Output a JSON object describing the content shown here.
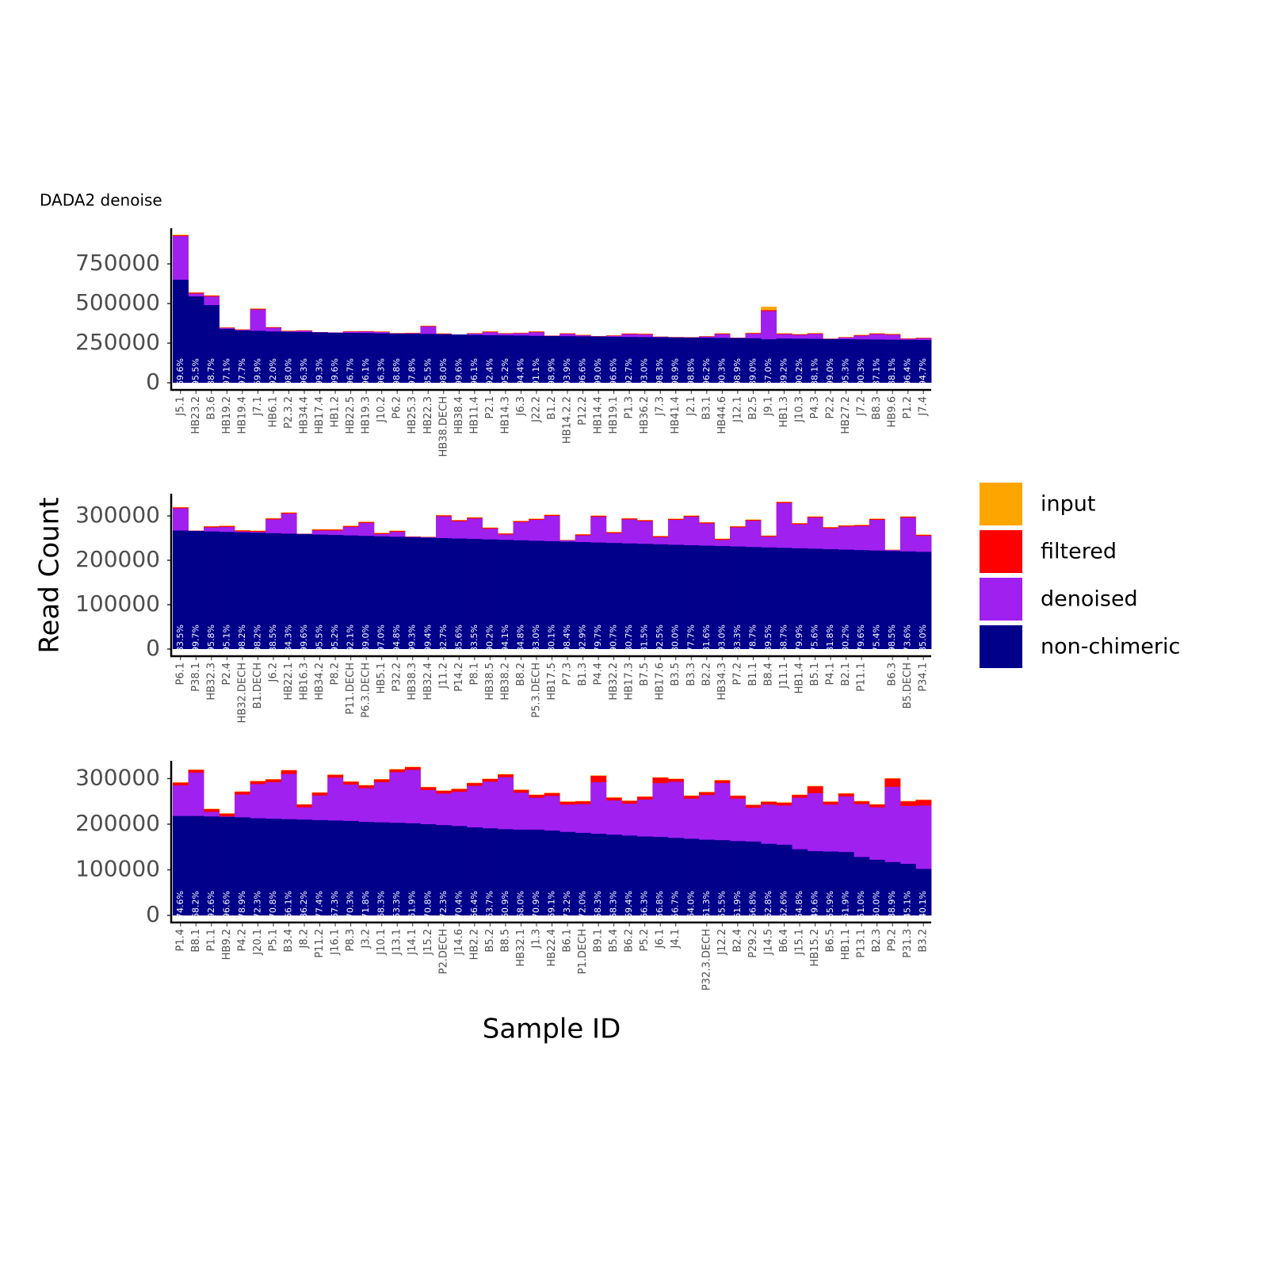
{
  "chart_data": [
    {
      "type": "bar",
      "title": "DADA2 denoise",
      "overlay": true,
      "legend": "right",
      "ylim": [
        -35000,
        975000
      ],
      "yticks": [
        0,
        250000,
        500000,
        750000
      ],
      "categories": [
        "J5.1",
        "HB23.2",
        "B3.6",
        "HB19.2",
        "HB19.4",
        "J7.1",
        "HB6.1",
        "P2.3.2",
        "HB34.4",
        "HB17.4",
        "HB1.2",
        "HB22.5",
        "HB19.3",
        "J10.2",
        "P6.2",
        "HB25.3",
        "HB22.3",
        "HB38.DECH",
        "HB38.4",
        "HB11.4",
        "P2.1",
        "HB14.3",
        "J6.3",
        "J22.2",
        "B1.2",
        "HB14.2.2",
        "P12.2",
        "HB14.4",
        "HB19.1",
        "P1.3",
        "HB36.2",
        "J7.3",
        "HB41.4",
        "J2.1",
        "B3.1",
        "HB44.6",
        "J12.1",
        "B2.5",
        "J9.1",
        "HB1.3",
        "J10.3",
        "P4.3",
        "P2.2",
        "HB27.2",
        "J7.2",
        "B8.3",
        "HB9.6",
        "P1.2",
        "J7.4"
      ],
      "bar_labels": [
        "69.6%",
        "95.5%",
        "88.7%",
        "97.1%",
        "97.7%",
        "69.9%",
        "92.0%",
        "98.0%",
        "96.3%",
        "99.3%",
        "99.6%",
        "96.7%",
        "96.1%",
        "96.3%",
        "98.8%",
        "97.8%",
        "85.5%",
        "98.0%",
        "99.6%",
        "96.1%",
        "92.4%",
        "95.2%",
        "94.4%",
        "91.1%",
        "98.9%",
        "93.9%",
        "96.6%",
        "99.0%",
        "96.6%",
        "92.7%",
        "93.0%",
        "98.3%",
        "98.9%",
        "98.8%",
        "96.2%",
        "90.3%",
        "98.9%",
        "89.0%",
        "57.0%",
        "89.2%",
        "90.2%",
        "88.1%",
        "99.0%",
        "95.3%",
        "90.3%",
        "87.1%",
        "88.1%",
        "96.4%",
        "94.7%"
      ],
      "series": [
        {
          "name": "input",
          "color": "#FFA500",
          "values": [
            935000,
            571000,
            552000,
            350000,
            338000,
            469000,
            352000,
            329000,
            332000,
            320000,
            317000,
            326000,
            327000,
            324000,
            314000,
            316000,
            360000,
            312000,
            305000,
            314000,
            325000,
            314000,
            316000,
            325000,
            298000,
            313000,
            303000,
            295000,
            300000,
            312000,
            310000,
            292000,
            289000,
            288000,
            295000,
            313000,
            285000,
            316000,
            480000,
            313000,
            308000,
            314000,
            279000,
            289000,
            303000,
            313000,
            309000,
            281000,
            285000
          ]
        },
        {
          "name": "filtered",
          "color": "#FF0000",
          "values": [
            930000,
            568000,
            549000,
            348000,
            336000,
            466000,
            350000,
            327000,
            330000,
            319500,
            316800,
            324000,
            325000,
            322000,
            313000,
            314000,
            358000,
            310000,
            304800,
            312000,
            322000,
            312000,
            314000,
            322000,
            297000,
            311000,
            301000,
            294000,
            298000,
            310000,
            308000,
            291000,
            288000,
            287000,
            293000,
            310000,
            284000,
            313000,
            458000,
            310000,
            305000,
            311000,
            278000,
            287000,
            300000,
            310000,
            306000,
            279000,
            283000
          ]
        },
        {
          "name": "denoised",
          "color": "#A020F0",
          "values": [
            925000,
            563000,
            544000,
            346000,
            334000,
            462000,
            347000,
            325000,
            328000,
            319000,
            316500,
            322000,
            323000,
            320000,
            312000,
            312000,
            355000,
            308000,
            304500,
            310000,
            319000,
            310000,
            312000,
            319000,
            296000,
            308000,
            299000,
            293000,
            296000,
            307000,
            305000,
            290000,
            287000,
            286000,
            291000,
            307000,
            283000,
            310000,
            452000,
            307000,
            302000,
            308000,
            277000,
            285000,
            297000,
            307000,
            303000,
            277000,
            281000
          ]
        },
        {
          "name": "non-chimeric",
          "color": "#00008B",
          "values": [
            650000,
            545000,
            490000,
            340000,
            330000,
            328000,
            324000,
            322000,
            320000,
            318000,
            316000,
            315000,
            314000,
            312000,
            310000,
            309000,
            308000,
            306000,
            304000,
            302000,
            300000,
            299000,
            298000,
            296000,
            295000,
            294000,
            293000,
            292000,
            290000,
            289000,
            288000,
            287000,
            286000,
            285000,
            284000,
            283000,
            282000,
            281000,
            274000,
            279000,
            278000,
            277000,
            276000,
            275000,
            274000,
            273000,
            272000,
            271000,
            270000
          ]
        }
      ]
    },
    {
      "type": "bar",
      "overlay": true,
      "ylabel": "Read Count",
      "ylim": [
        -12500,
        350000
      ],
      "yticks": [
        0,
        100000,
        200000,
        300000
      ],
      "categories": [
        "P6.1",
        "P38.1",
        "HB32.3",
        "P2.4",
        "HB32.DECH",
        "B1.DECH",
        "J6.2",
        "HB22.1",
        "HB16.3",
        "HB34.2",
        "P8.2",
        "P11.DECH",
        "P6.3.DECH",
        "HB5.1",
        "P32.2",
        "HB38.3",
        "HB32.4",
        "J11.2",
        "P14.2",
        "P8.1",
        "HB38.5",
        "HB38.2",
        "B8.2",
        "P5.3.DECH",
        "HB17.5",
        "P7.3",
        "B1.3",
        "P4.4",
        "HB32.2",
        "HB17.3",
        "B7.5",
        "HB17.6",
        "B3.5",
        "B3.3",
        "B2.2",
        "HB34.3",
        "P7.2",
        "B1.1",
        "B8.4",
        "J11.1",
        "HB1.4",
        "B5.1",
        "P4.1",
        "B2.1",
        "P11.1",
        null,
        "B6.3",
        "B5.DECH",
        "P34.1"
      ],
      "bar_labels": [
        "83.5%",
        "99.7%",
        "95.8%",
        "95.1%",
        "98.2%",
        "98.2%",
        "88.5%",
        "84.3%",
        "99.6%",
        "95.5%",
        "95.2%",
        "92.1%",
        "89.0%",
        "97.0%",
        "94.8%",
        "99.3%",
        "99.4%",
        "82.7%",
        "85.6%",
        "83.5%",
        "90.2%",
        "94.1%",
        "84.8%",
        "83.0%",
        "80.1%",
        "98.4%",
        "92.9%",
        "79.7%",
        "90.7%",
        "80.7%",
        "81.5%",
        "92.5%",
        "80.0%",
        "77.7%",
        "81.6%",
        "93.0%",
        "83.3%",
        "78.7%",
        "89.5%",
        "68.7%",
        "79.9%",
        "75.6%",
        "81.8%",
        "80.2%",
        "79.6%",
        "75.4%",
        "98.5%",
        "73.6%",
        "85.0%"
      ],
      "series": [
        {
          "name": "input",
          "color": "#FFA500",
          "values": [
            320000,
            267000,
            277000,
            278000,
            268000,
            267000,
            295000,
            308000,
            260000,
            270000,
            270000,
            278000,
            287000,
            262000,
            267000,
            254000,
            253000,
            302000,
            291000,
            297000,
            274000,
            261000,
            289000,
            294000,
            303000,
            246000,
            259000,
            301000,
            264000,
            295000,
            291000,
            255000,
            294000,
            301000,
            286000,
            249000,
            277000,
            292000,
            256000,
            332000,
            284000,
            299000,
            275000,
            279000,
            280000,
            294000,
            224000,
            299000,
            258000
          ]
        },
        {
          "name": "filtered",
          "color": "#FF0000",
          "values": [
            319000,
            266800,
            276000,
            277000,
            267000,
            266000,
            294000,
            307000,
            259800,
            269000,
            269000,
            277000,
            286000,
            261000,
            266000,
            253500,
            252500,
            301000,
            290000,
            296000,
            273000,
            260000,
            288000,
            293000,
            302000,
            245500,
            258000,
            300000,
            263000,
            294000,
            290000,
            254000,
            293000,
            300000,
            285000,
            248000,
            276000,
            291000,
            255000,
            331000,
            283000,
            298000,
            274000,
            278000,
            279000,
            293000,
            223500,
            298000,
            257000
          ]
        },
        {
          "name": "denoised",
          "color": "#A020F0",
          "values": [
            317000,
            266500,
            274000,
            275000,
            265000,
            264000,
            292000,
            305000,
            259500,
            267000,
            267000,
            275000,
            284000,
            259000,
            264000,
            253000,
            252000,
            299000,
            288000,
            294000,
            271000,
            258000,
            286000,
            291000,
            300000,
            245000,
            256000,
            298000,
            261000,
            292000,
            288000,
            252000,
            291000,
            298000,
            283000,
            246000,
            274000,
            289000,
            253000,
            329000,
            281000,
            296000,
            272000,
            276000,
            277000,
            291000,
            223000,
            296000,
            255000
          ]
        },
        {
          "name": "non-chimeric",
          "color": "#00008B",
          "values": [
            267000,
            266000,
            265000,
            264000,
            263000,
            262000,
            261000,
            260000,
            259000,
            258000,
            257000,
            256000,
            255000,
            254000,
            253000,
            252000,
            251000,
            250000,
            249000,
            248000,
            247000,
            246000,
            245000,
            244000,
            243000,
            242000,
            241000,
            240000,
            239000,
            238000,
            237000,
            236000,
            235000,
            234000,
            233000,
            232000,
            231000,
            230000,
            229000,
            228000,
            227000,
            226000,
            225000,
            224000,
            223000,
            222000,
            221000,
            220000,
            219000
          ]
        }
      ]
    },
    {
      "type": "bar",
      "overlay": true,
      "xlabel": "Sample ID",
      "ylim": [
        -12000,
        339000
      ],
      "yticks": [
        0,
        100000,
        200000,
        300000
      ],
      "categories": [
        "P1.4",
        "B8.1",
        "P1.1",
        "HB9.2",
        "P4.2",
        "J20.1",
        "P5.1",
        "B3.4",
        "J8.2",
        "P11.2",
        "J16.1",
        "P8.3",
        "J3.2",
        "J10.1",
        "J13.1",
        "J14.1",
        "J15.2",
        "P2.DECH",
        "J14.6",
        "HB2.2",
        "B5.2",
        "B8.5",
        "HB32.1",
        "J1.3",
        "HB22.4",
        "B6.1",
        "P1.DECH",
        "B9.1",
        "B5.4",
        "B6.2",
        "P5.2",
        "J6.1",
        "J4.1",
        null,
        "P32.3.DECH",
        "J12.2",
        "B2.4",
        "P29.2",
        "J14.5",
        "B6.4",
        "J15.1",
        "HB15.2",
        "B6.5",
        "HB1.1",
        "P13.1",
        "B2.3",
        "P9.2",
        "P31.3",
        "B3.2"
      ],
      "bar_labels": [
        "74.6%",
        "68.2%",
        "92.6%",
        "96.6%",
        "78.9%",
        "72.3%",
        "70.8%",
        "66.1%",
        "86.2%",
        "77.4%",
        "67.3%",
        "70.3%",
        "71.8%",
        "68.3%",
        "63.3%",
        "61.9%",
        "70.8%",
        "72.3%",
        "70.4%",
        "66.4%",
        "63.7%",
        "60.9%",
        "68.0%",
        "70.9%",
        "69.1%",
        "73.2%",
        "72.0%",
        "58.3%",
        "68.3%",
        "69.4%",
        "66.3%",
        "56.8%",
        "56.7%",
        "64.0%",
        "61.3%",
        "55.5%",
        "61.9%",
        "66.8%",
        "62.8%",
        "62.6%",
        "54.8%",
        "49.6%",
        "55.9%",
        "51.9%",
        "51.0%",
        "50.0%",
        "38.9%",
        "45.1%",
        "40.1%"
      ],
      "series": [
        {
          "name": "input",
          "color": "#FFA500",
          "values": [
            292000,
            320000,
            234000,
            224000,
            272000,
            295000,
            299000,
            319000,
            244000,
            270000,
            309000,
            294000,
            286000,
            299000,
            321000,
            326000,
            282000,
            274000,
            278000,
            291000,
            300000,
            310000,
            276000,
            265000,
            269000,
            250000,
            251000,
            307000,
            259000,
            252000,
            261000,
            303000,
            300000,
            263000,
            271000,
            297000,
            263000,
            243000,
            250000,
            248000,
            265000,
            284000,
            250000,
            268000,
            251000,
            244000,
            301000,
            251000,
            254000
          ]
        },
        {
          "name": "filtered",
          "color": "#FF0000",
          "values": [
            291000,
            319000,
            233000,
            223000,
            271000,
            294000,
            298000,
            318000,
            243000,
            269000,
            308000,
            293000,
            285000,
            298000,
            320000,
            325000,
            281000,
            273000,
            277000,
            290000,
            299000,
            309000,
            275000,
            264000,
            268000,
            249000,
            250000,
            306000,
            258000,
            251000,
            260000,
            302000,
            299000,
            262000,
            270000,
            296000,
            262000,
            242000,
            249000,
            247000,
            264000,
            283000,
            249000,
            267000,
            250000,
            243000,
            300000,
            250000,
            253000
          ]
        },
        {
          "name": "denoised",
          "color": "#A020F0",
          "values": [
            285000,
            313000,
            227000,
            217000,
            265000,
            288000,
            292000,
            310000,
            237000,
            263000,
            302000,
            287000,
            279000,
            292000,
            314000,
            319000,
            275000,
            267000,
            271000,
            284000,
            293000,
            303000,
            269000,
            258000,
            262000,
            243000,
            244000,
            292000,
            252000,
            245000,
            254000,
            290000,
            293000,
            256000,
            264000,
            290000,
            256000,
            236000,
            243000,
            241000,
            258000,
            268000,
            243000,
            261000,
            244000,
            237000,
            282000,
            240000,
            241000
          ]
        },
        {
          "name": "non-chimeric",
          "color": "#00008B",
          "values": [
            218000,
            218000,
            217000,
            216000,
            215000,
            213000,
            212000,
            211000,
            210000,
            209000,
            208000,
            207000,
            205000,
            204000,
            203000,
            202000,
            200000,
            198000,
            196000,
            193000,
            191000,
            189000,
            188000,
            188000,
            186000,
            183000,
            181000,
            179000,
            177000,
            175000,
            173000,
            172000,
            170000,
            168000,
            166000,
            165000,
            163000,
            162000,
            157000,
            155000,
            145000,
            141000,
            140000,
            139000,
            128000,
            122000,
            117000,
            113000,
            102000
          ]
        }
      ]
    }
  ]
}
